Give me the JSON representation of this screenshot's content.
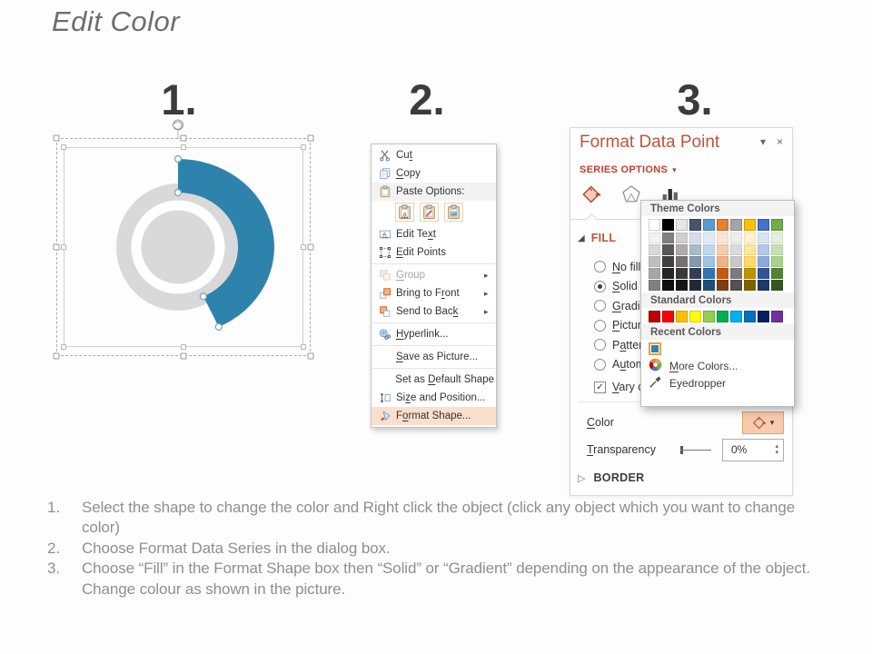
{
  "title": "Edit Color",
  "steps": [
    "1.",
    "2.",
    "3."
  ],
  "colors": {
    "donut_blue": "#2E83AC",
    "donut_gray": "#D9D9D9",
    "panel_red": "#C2523C",
    "highlight_bg": "#FADFCB",
    "color_button_bg": "#F8CBAD"
  },
  "icons": {
    "dropdown": "▾",
    "collapse": "▾",
    "close": "×",
    "submenu": "▸",
    "expanded": "◢",
    "collapsed": "▷",
    "check": "✓",
    "spin_up": "▴",
    "spin_down": "▾"
  },
  "context_menu": {
    "items": [
      {
        "label": "Cut",
        "u": 2,
        "icon": "scissors-icon"
      },
      {
        "label": "Copy",
        "u": 0,
        "icon": "copy-icon"
      },
      {
        "label": "Paste Options:",
        "icon": "paste-icon",
        "type": "paste-header"
      },
      {
        "type": "paste-row",
        "icons": [
          "paste-keep-source-icon",
          "paste-merge-formatting-icon",
          "paste-picture-icon"
        ]
      },
      {
        "label": "Edit Text",
        "u": 7,
        "icon": "edit-text-icon"
      },
      {
        "label": "Edit Points",
        "u": 0,
        "icon": "edit-points-icon",
        "sep_after": true
      },
      {
        "label": "Group",
        "u": 0,
        "icon": "group-icon",
        "disabled": true,
        "submenu": true
      },
      {
        "label": "Bring to Front",
        "u": 10,
        "icon": "bring-front-icon",
        "submenu": true
      },
      {
        "label": "Send to Back",
        "u": 11,
        "icon": "send-back-icon",
        "submenu": true,
        "sep_after": true
      },
      {
        "label": "Hyperlink...",
        "u": 0,
        "icon": "hyperlink-icon",
        "sep_after": true
      },
      {
        "label": "Save as Picture...",
        "u": 0,
        "sep_after": true
      },
      {
        "label": "Set as Default Shape",
        "u": 7
      },
      {
        "label": "Size and Position...",
        "u": 2,
        "icon": "size-position-icon"
      },
      {
        "label": "Format Shape...",
        "u": 1,
        "icon": "format-shape-icon",
        "highlight": true
      }
    ]
  },
  "format_panel": {
    "title": "Format Data Point",
    "series_options": "SERIES OPTIONS",
    "tabs": [
      {
        "name": "fill-line-tab",
        "icon": "paint-bucket-icon",
        "selected": true
      },
      {
        "name": "effects-tab",
        "icon": "pentagon-icon"
      },
      {
        "name": "series-options-tab",
        "icon": "bar-chart-icon"
      }
    ],
    "fill_heading": "FILL",
    "fill_options": [
      {
        "label": "No fill",
        "u": 0
      },
      {
        "label": "Solid fi",
        "u": 0,
        "selected": true
      },
      {
        "label": "Gradie",
        "u": 0
      },
      {
        "label": "Picture",
        "u": 0
      },
      {
        "label": "Pattern",
        "u": 1
      },
      {
        "label": "Autom",
        "u": 1
      }
    ],
    "vary_colors": {
      "label": "Vary co",
      "u": 0,
      "checked": true
    },
    "color_label": "Color",
    "color_u": 0,
    "transparency_label": "Transparency",
    "transparency_u": 0,
    "transparency_value": "0%",
    "border_heading": "BORDER"
  },
  "color_picker": {
    "theme_header": "Theme Colors",
    "standard_header": "Standard Colors",
    "recent_header": "Recent Colors",
    "more_colors": "More Colors...",
    "more_colors_u": 0,
    "eyedropper": "Eyedropper",
    "theme_columns": [
      {
        "main": "#FFFFFF",
        "tints": [
          "#F2F2F2",
          "#D9D9D9",
          "#BFBFBF",
          "#A6A6A6",
          "#808080"
        ]
      },
      {
        "main": "#000000",
        "tints": [
          "#808080",
          "#595959",
          "#404040",
          "#262626",
          "#0D0D0D"
        ]
      },
      {
        "main": "#E7E6E6",
        "tints": [
          "#D0CECE",
          "#AEAAAA",
          "#757171",
          "#3A3838",
          "#161616"
        ]
      },
      {
        "main": "#44546A",
        "tints": [
          "#D6DCE5",
          "#ACB9CA",
          "#8496B0",
          "#333F50",
          "#222B35"
        ]
      },
      {
        "main": "#5B9BD5",
        "tints": [
          "#DEEBF7",
          "#BDD7EE",
          "#9DC3E6",
          "#2E75B6",
          "#1F4E79"
        ]
      },
      {
        "main": "#ED7D31",
        "tints": [
          "#FBE5D6",
          "#F8CBAD",
          "#F4B183",
          "#C55A11",
          "#843C0C"
        ]
      },
      {
        "main": "#A5A5A5",
        "tints": [
          "#EDEDED",
          "#DBDBDB",
          "#C9C9C9",
          "#7B7B7B",
          "#525252"
        ]
      },
      {
        "main": "#FFC000",
        "tints": [
          "#FFF2CC",
          "#FFE699",
          "#FFD966",
          "#BF9000",
          "#7F6000"
        ]
      },
      {
        "main": "#4472C4",
        "tints": [
          "#DAE3F3",
          "#B4C7E7",
          "#8FAADC",
          "#2F5597",
          "#1F3864"
        ]
      },
      {
        "main": "#70AD47",
        "tints": [
          "#E2EFDA",
          "#C6E0B4",
          "#A9D18E",
          "#548235",
          "#375623"
        ]
      }
    ],
    "standard": [
      "#C00000",
      "#FF0000",
      "#FFC000",
      "#FFFF00",
      "#92D050",
      "#00B050",
      "#00B0F0",
      "#0070C0",
      "#002060",
      "#7030A0"
    ],
    "recent": [
      "#2E83AC"
    ]
  },
  "instructions": [
    "Select the shape to change the color and Right click the object (click any object which you want to change color)",
    "Choose Format Data Series in the dialog box.",
    "Choose “Fill” in the Format Shape box then “Solid” or “Gradient” depending on the appearance of the object. Change colour as shown in the picture."
  ]
}
